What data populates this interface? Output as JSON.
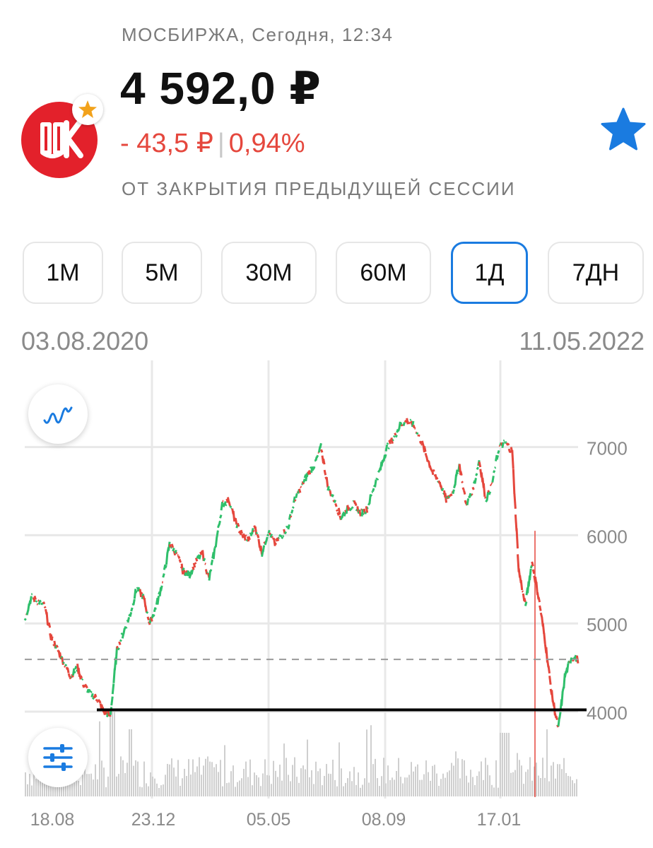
{
  "header": {
    "exchange_line": "МОСБИРЖА, Сегодня, 12:34",
    "price": "4 592,0 ₽",
    "change_abs": "- 43,5 ₽",
    "change_pct": "0,94%",
    "since_label": "ОТ ЗАКРЫТИЯ ПРЕДЫДУЩЕЙ СЕССИИ",
    "logo_text": "ЛУК"
  },
  "timeframes": [
    {
      "label": "1М",
      "active": false
    },
    {
      "label": "5М",
      "active": false
    },
    {
      "label": "30М",
      "active": false
    },
    {
      "label": "60М",
      "active": false
    },
    {
      "label": "1Д",
      "active": true
    },
    {
      "label": "7ДН",
      "active": false
    }
  ],
  "range": {
    "start": "03.08.2020",
    "end": "11.05.2022"
  },
  "colors": {
    "up": "#2fbf6b",
    "down": "#e5473d",
    "accent": "#1a7be0",
    "volume": "#cfcfcf",
    "grid": "#e8e8e8"
  },
  "icons": {
    "favorite": "star-icon",
    "chart_type": "line-chart-icon",
    "settings": "sliders-icon"
  },
  "chart_data": {
    "type": "line",
    "x_ticks": [
      "18.08",
      "23.12",
      "05.05",
      "08.09",
      "17.01"
    ],
    "y_ticks": [
      "4000",
      "5000",
      "6000",
      "7000"
    ],
    "ylim": [
      3000,
      7950
    ],
    "current_price": 4592,
    "support_line": 4020,
    "series": [
      {
        "values": [
          5050,
          5300,
          5250,
          5200,
          4850,
          4700,
          4550,
          4400,
          4500,
          4300,
          4200,
          4150,
          4000,
          3950,
          4700,
          4900,
          5100,
          5400,
          5300,
          5000,
          5200,
          5500,
          5900,
          5800,
          5600,
          5550,
          5700,
          5800,
          5500,
          5900,
          6350,
          6400,
          6150,
          6000,
          5950,
          6100,
          5800,
          6050,
          5900,
          6000,
          6100,
          6400,
          6550,
          6700,
          6800,
          7000,
          6550,
          6400,
          6200,
          6300,
          6350,
          6250,
          6300,
          6550,
          6750,
          7000,
          7100,
          7250,
          7300,
          7250,
          7100,
          6900,
          6700,
          6600,
          6400,
          6500,
          6800,
          6350,
          6500,
          6850,
          6400,
          6600,
          7000,
          7050,
          6950,
          5600,
          5200,
          5700,
          5300,
          4800,
          4200,
          3800,
          4400,
          4620,
          4592
        ]
      }
    ],
    "volume_range": [
      0,
      1
    ]
  }
}
